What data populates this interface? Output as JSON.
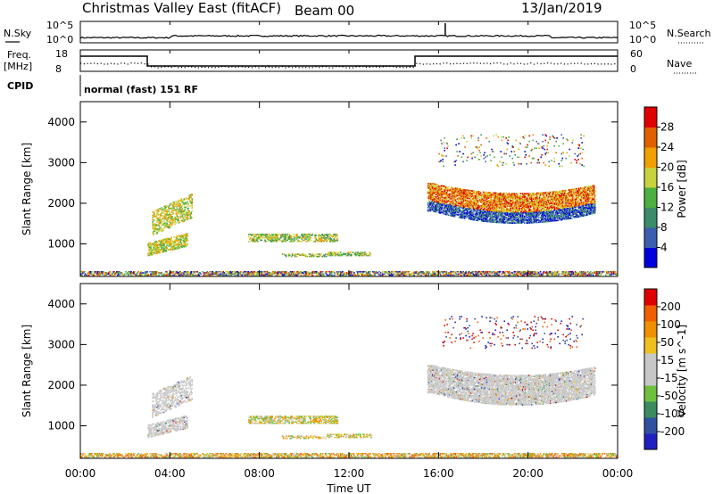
{
  "header": {
    "station": "Christmas Valley East (fitACF)",
    "beam": "Beam 00",
    "date": "13/Jan/2019"
  },
  "panels": {
    "nsky_label": "N.Sky",
    "nsearch_label": "N.Search",
    "noise_top": "10^5",
    "noise_bottom": "10^0",
    "freq_label_1": "Freq.",
    "freq_label_2": "[MHz]",
    "freq_top": "18",
    "freq_bottom": "8",
    "nave_label": "Nave",
    "nave_top": "60",
    "nave_bottom": "0",
    "cpid_label": "CPID",
    "cpid_text": "normal (fast) 151 RF"
  },
  "colors": {
    "power_scale": [
      "#0000dd",
      "#3a5fb0",
      "#3b8c6a",
      "#4cb040",
      "#c8d23c",
      "#f0a000",
      "#e06000",
      "#e00000"
    ],
    "velocity_scale": [
      "#e00000",
      "#f06000",
      "#f09000",
      "#f0c020",
      "#c8c8c8",
      "#c8c8c8",
      "#70c040",
      "#3a8c60",
      "#3050a0",
      "#2020c0"
    ]
  },
  "chart_data": [
    {
      "type": "heatmap",
      "name": "power",
      "ylabel": "Slant Range [km]",
      "yticks": [
        "1000",
        "2000",
        "3000",
        "4000"
      ],
      "colorbar_label": "Power [dB]",
      "colorbar_ticks": [
        "4",
        "8",
        "12",
        "16",
        "20",
        "24",
        "28"
      ],
      "ylim": [
        200,
        4500
      ],
      "xlim": [
        0,
        24
      ]
    },
    {
      "type": "heatmap",
      "name": "velocity",
      "ylabel": "Slant Range [km]",
      "yticks": [
        "1000",
        "2000",
        "3000",
        "4000"
      ],
      "colorbar_label": "Velocity [m s^-1]",
      "colorbar_ticks": [
        "200",
        "100",
        "50",
        "15",
        "-15",
        "-50",
        "-100",
        "-200"
      ],
      "ylim": [
        200,
        4500
      ],
      "xlim": [
        0,
        24
      ]
    }
  ],
  "xaxis": {
    "ticks": [
      "00:00",
      "04:00",
      "08:00",
      "12:00",
      "16:00",
      "20:00",
      "00:00"
    ],
    "label": "Time UT"
  }
}
